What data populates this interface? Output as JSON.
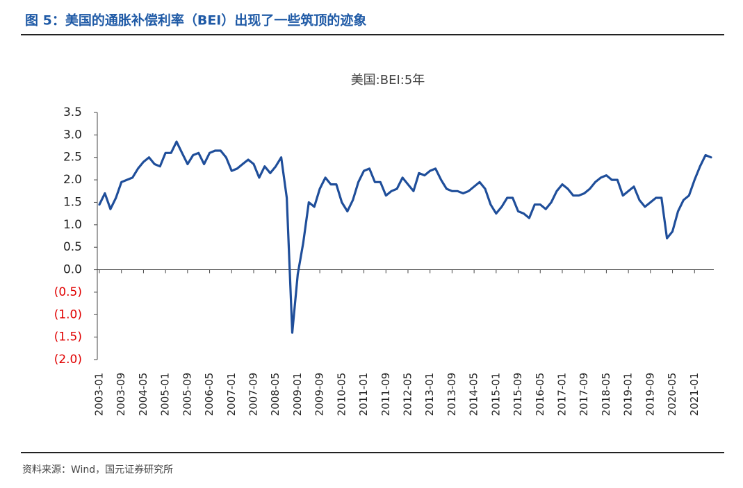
{
  "header": {
    "title": "图 5：美国的通胀补偿利率（BEI）出现了一些筑顶的迹象"
  },
  "chart_data": {
    "type": "line",
    "title": "美国:BEI:5年",
    "x": [
      "2003-01",
      "2003-03",
      "2003-05",
      "2003-07",
      "2003-09",
      "2003-11",
      "2004-01",
      "2004-03",
      "2004-05",
      "2004-07",
      "2004-09",
      "2004-11",
      "2005-01",
      "2005-03",
      "2005-05",
      "2005-07",
      "2005-09",
      "2005-11",
      "2006-01",
      "2006-03",
      "2006-05",
      "2006-07",
      "2006-09",
      "2006-11",
      "2007-01",
      "2007-03",
      "2007-05",
      "2007-07",
      "2007-09",
      "2007-11",
      "2008-01",
      "2008-03",
      "2008-05",
      "2008-07",
      "2008-09",
      "2008-11",
      "2009-01",
      "2009-03",
      "2009-05",
      "2009-07",
      "2009-09",
      "2009-11",
      "2010-01",
      "2010-03",
      "2010-05",
      "2010-07",
      "2010-09",
      "2010-11",
      "2011-01",
      "2011-03",
      "2011-05",
      "2011-07",
      "2011-09",
      "2011-11",
      "2012-01",
      "2012-03",
      "2012-05",
      "2012-07",
      "2012-09",
      "2012-11",
      "2013-01",
      "2013-03",
      "2013-05",
      "2013-07",
      "2013-09",
      "2013-11",
      "2014-01",
      "2014-03",
      "2014-05",
      "2014-07",
      "2014-09",
      "2014-11",
      "2015-01",
      "2015-03",
      "2015-05",
      "2015-07",
      "2015-09",
      "2015-11",
      "2016-01",
      "2016-03",
      "2016-05",
      "2016-07",
      "2016-09",
      "2016-11",
      "2017-01",
      "2017-03",
      "2017-05",
      "2017-07",
      "2017-09",
      "2017-11",
      "2018-01",
      "2018-03",
      "2018-05",
      "2018-07",
      "2018-09",
      "2018-11",
      "2019-01",
      "2019-03",
      "2019-05",
      "2019-07",
      "2019-09",
      "2019-11",
      "2020-01",
      "2020-03",
      "2020-05",
      "2020-07",
      "2020-09",
      "2020-11",
      "2021-01",
      "2021-03",
      "2021-05",
      "2021-07"
    ],
    "values": [
      1.45,
      1.7,
      1.35,
      1.6,
      1.95,
      2.0,
      2.05,
      2.25,
      2.4,
      2.5,
      2.35,
      2.3,
      2.6,
      2.6,
      2.85,
      2.6,
      2.35,
      2.55,
      2.6,
      2.35,
      2.6,
      2.65,
      2.65,
      2.5,
      2.2,
      2.25,
      2.35,
      2.45,
      2.35,
      2.05,
      2.3,
      2.15,
      2.3,
      2.5,
      1.6,
      -1.4,
      -0.1,
      0.6,
      1.5,
      1.4,
      1.8,
      2.05,
      1.9,
      1.9,
      1.5,
      1.3,
      1.55,
      1.95,
      2.2,
      2.25,
      1.95,
      1.95,
      1.65,
      1.75,
      1.8,
      2.05,
      1.9,
      1.75,
      2.15,
      2.1,
      2.2,
      2.25,
      2.0,
      1.8,
      1.75,
      1.75,
      1.7,
      1.75,
      1.85,
      1.95,
      1.8,
      1.45,
      1.25,
      1.4,
      1.6,
      1.6,
      1.3,
      1.25,
      1.15,
      1.45,
      1.45,
      1.35,
      1.5,
      1.75,
      1.9,
      1.8,
      1.65,
      1.65,
      1.7,
      1.8,
      1.95,
      2.05,
      2.1,
      2.0,
      2.0,
      1.65,
      1.75,
      1.85,
      1.55,
      1.4,
      1.5,
      1.6,
      1.6,
      0.7,
      0.85,
      1.3,
      1.55,
      1.65,
      2.0,
      2.3,
      2.55,
      2.5
    ],
    "color": "#1f4e9a",
    "xlim": [
      "2003-01",
      "2021-08"
    ],
    "xticks": [
      "2003-01",
      "2003-09",
      "2004-05",
      "2005-01",
      "2005-09",
      "2006-05",
      "2007-01",
      "2007-09",
      "2008-05",
      "2009-01",
      "2009-09",
      "2010-05",
      "2011-01",
      "2011-09",
      "2012-05",
      "2013-01",
      "2013-09",
      "2014-05",
      "2015-01",
      "2015-09",
      "2016-05",
      "2017-01",
      "2017-09",
      "2018-05",
      "2019-01",
      "2019-09",
      "2020-05",
      "2021-01"
    ],
    "ylim": [
      -2,
      3.5
    ],
    "yticks": [
      3.5,
      {
        "value": 3,
        "label": "3.0"
      },
      2.5,
      {
        "value": 2,
        "label": "2.0"
      },
      1.5,
      {
        "value": 1,
        "label": "1.0"
      },
      0.5,
      {
        "value": 0,
        "label": "0.0"
      },
      {
        "value": -0.5,
        "label": "(0.5)"
      },
      {
        "value": -1,
        "label": "(1.0)"
      },
      {
        "value": -1.5,
        "label": "(1.5)"
      },
      {
        "value": -2,
        "label": "(2.0)"
      }
    ],
    "negative_tick_label_color": "#e00000"
  },
  "source": "资料来源：Wind，国元证券研究所"
}
